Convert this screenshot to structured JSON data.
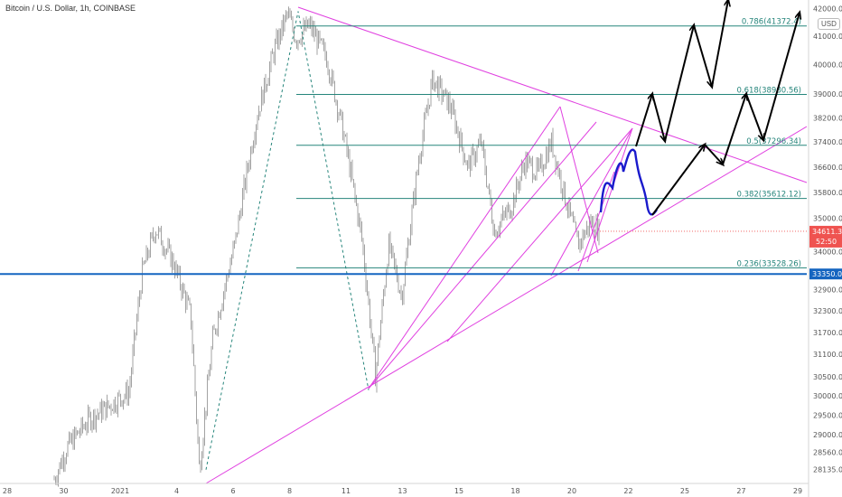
{
  "header": {
    "title": "Bitcoin / U.S. Dollar, 1h, COINBASE",
    "currency_badge": "USD"
  },
  "colors": {
    "background": "#ffffff",
    "candle": "#8c8c8c",
    "pattern_lines": "#e040e0",
    "fib_lines": "#26857b",
    "support_line": "#1565c0",
    "projection_path": "#1a1acc",
    "arrows": "#000000",
    "price_badge": "#ef5350",
    "support_badge": "#1565c0"
  },
  "chart_data": {
    "type": "line",
    "title": "Bitcoin / U.S. Dollar, 1h, COINBASE",
    "xlabel": "",
    "ylabel": "",
    "x_ticks": [
      "28",
      "30",
      "2021",
      "4",
      "6",
      "8",
      "11",
      "13",
      "15",
      "18",
      "20",
      "22",
      "25",
      "27",
      "29"
    ],
    "y_ticks": [
      "28135.00",
      "28560.00",
      "29000.00",
      "29500.00",
      "30000.00",
      "30500.00",
      "31100.00",
      "31700.00",
      "32300.00",
      "32900.00",
      "34000.00",
      "35000.00",
      "35800.00",
      "36600.00",
      "37400.00",
      "38200.00",
      "39000.00",
      "40000.00",
      "41000.00",
      "42000.00"
    ],
    "ylim": [
      27800,
      42050
    ],
    "price_scale": "log",
    "price_path_label": "Bitcoin / U.S. Dollar, 1h",
    "price_path": [
      {
        "t": 0,
        "p": 27900
      },
      {
        "t": 3,
        "p": 28700
      },
      {
        "t": 8,
        "p": 29400
      },
      {
        "t": 12,
        "p": 29700
      },
      {
        "t": 17,
        "p": 30100
      },
      {
        "t": 20,
        "p": 33400
      },
      {
        "t": 23,
        "p": 34700
      },
      {
        "t": 27,
        "p": 33700
      },
      {
        "t": 31,
        "p": 32200
      },
      {
        "t": 33,
        "p": 28100
      },
      {
        "t": 36,
        "p": 31500
      },
      {
        "t": 41,
        "p": 34200
      },
      {
        "t": 46,
        "p": 38200
      },
      {
        "t": 50,
        "p": 40500
      },
      {
        "t": 53,
        "p": 41800
      },
      {
        "t": 55,
        "p": 40900
      },
      {
        "t": 58,
        "p": 41400
      },
      {
        "t": 62,
        "p": 40200
      },
      {
        "t": 66,
        "p": 37500
      },
      {
        "t": 70,
        "p": 34300
      },
      {
        "t": 73,
        "p": 30500
      },
      {
        "t": 76,
        "p": 34200
      },
      {
        "t": 79,
        "p": 32700
      },
      {
        "t": 83,
        "p": 37000
      },
      {
        "t": 86,
        "p": 39500
      },
      {
        "t": 90,
        "p": 38600
      },
      {
        "t": 94,
        "p": 36600
      },
      {
        "t": 97,
        "p": 37400
      },
      {
        "t": 100,
        "p": 34600
      },
      {
        "t": 104,
        "p": 35400
      },
      {
        "t": 107,
        "p": 36800
      },
      {
        "t": 110,
        "p": 36400
      },
      {
        "t": 113,
        "p": 37400
      },
      {
        "t": 116,
        "p": 35700
      },
      {
        "t": 119,
        "p": 34200
      },
      {
        "t": 122,
        "p": 34900
      },
      {
        "t": 124,
        "p": 34611.3
      }
    ],
    "fibonacci_levels": [
      {
        "ratio": "0.786",
        "label": "0.786(41372.4)",
        "price": 41372.4
      },
      {
        "ratio": "0.618",
        "label": "0.618(38980.56)",
        "price": 38980.56
      },
      {
        "ratio": "0.5",
        "label": "0.5(37296.34)",
        "price": 37296.34
      },
      {
        "ratio": "0.382",
        "label": "0.382(35612.12)",
        "price": 35612.12
      },
      {
        "ratio": "0.236",
        "label": "0.236(33528.26)",
        "price": 33528.26
      }
    ],
    "horizontal_support": {
      "price": 33350,
      "label": "33350.00"
    },
    "current_price": {
      "price": 34611.3,
      "label": "34611.30",
      "countdown": "52:50"
    },
    "grid": false,
    "legend": "none"
  }
}
